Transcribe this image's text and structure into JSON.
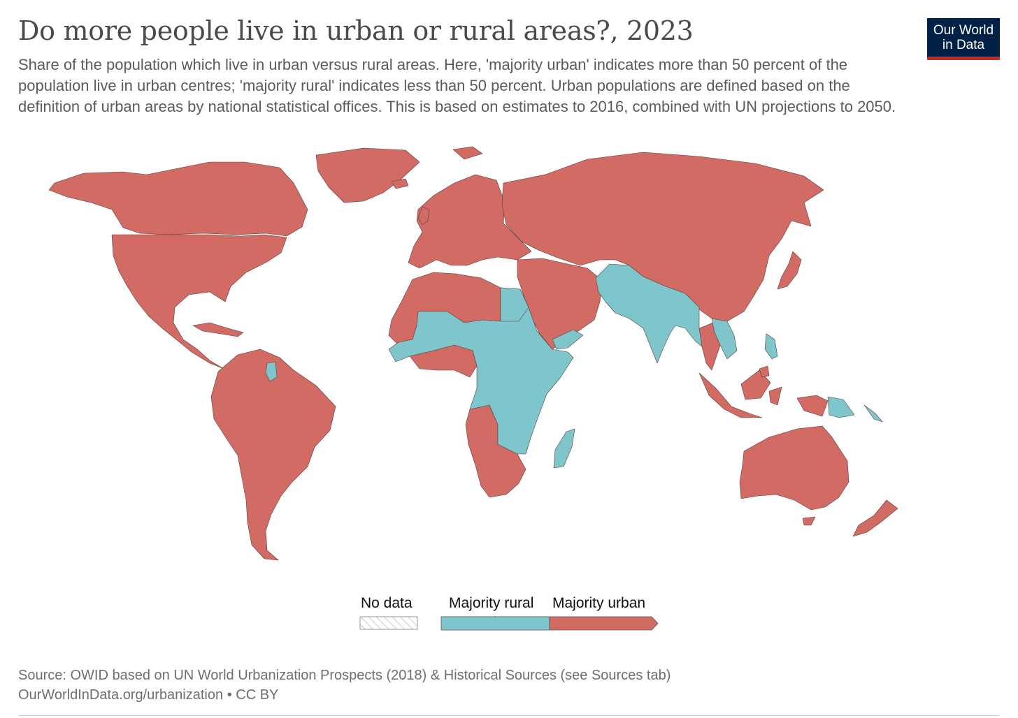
{
  "header": {
    "title": "Do more people live in urban or rural areas?, 2023",
    "subtitle": "Share of the population which live in urban versus rural areas. Here, 'majority urban' indicates more than 50 percent of the population live in urban centres; 'majority rural' indicates less than 50 percent. Urban populations are defined based on the definition of urban areas by national statistical offices. This is based on estimates to 2016, combined with UN projections to 2050."
  },
  "logo": {
    "line1": "Our World",
    "line2": "in Data"
  },
  "colors": {
    "urban": "#d16b64",
    "rural": "#7ec5cc",
    "border": "#5a3c3c"
  },
  "legend": {
    "no_data": "No data",
    "rural": "Majority rural",
    "urban": "Majority urban"
  },
  "footer": {
    "source": "Source: OWID based on UN World Urbanization Prospects (2018) & Historical Sources (see Sources tab)",
    "link": "OurWorldInData.org/urbanization",
    "license": "CC BY"
  }
}
